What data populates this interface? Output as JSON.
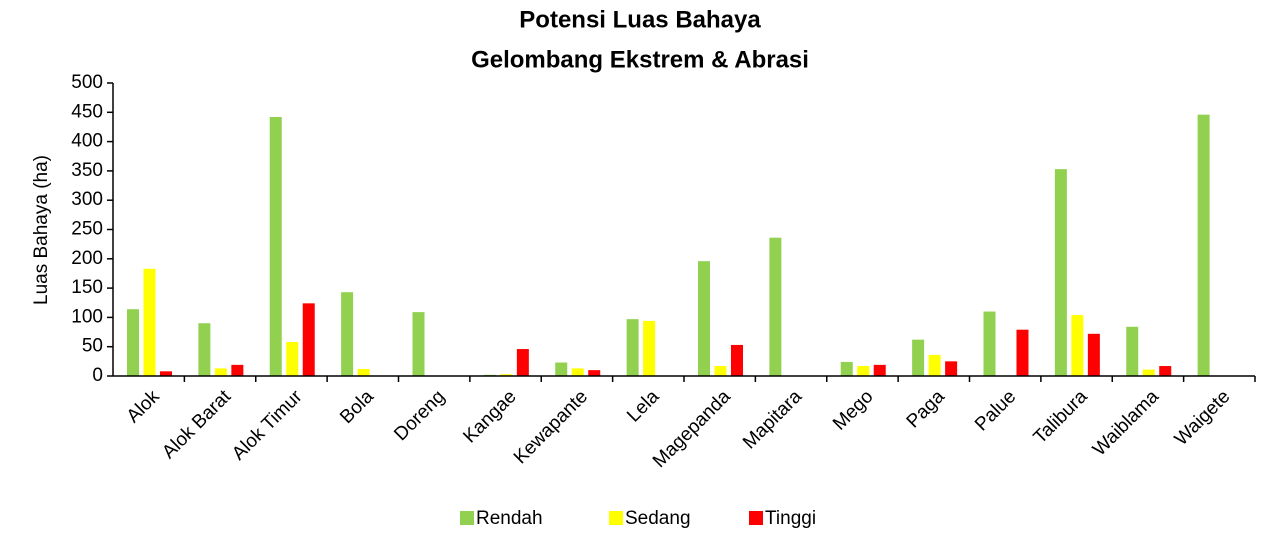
{
  "chart_data": {
    "type": "bar",
    "title": "Potensi Luas Bahaya",
    "subtitle": "Gelombang Ekstrem & Abrasi",
    "y_label": "Luas Bahaya (ha)",
    "categories": [
      "Alok",
      "Alok Barat",
      "Alok Timur",
      "Bola",
      "Doreng",
      "Kangae",
      "Kewapante",
      "Lela",
      "Magepanda",
      "Mapitara",
      "Mego",
      "Paga",
      "Palue",
      "Talibura",
      "Waiblama",
      "Waigete"
    ],
    "series": [
      {
        "name": "Rendah",
        "color": "#92d050",
        "values": [
          114,
          90,
          442,
          143,
          109,
          2,
          23,
          97,
          196,
          236,
          24,
          62,
          110,
          353,
          84,
          446
        ]
      },
      {
        "name": "Sedang",
        "color": "#ffff00",
        "values": [
          183,
          13,
          58,
          12,
          0,
          3,
          13,
          94,
          17,
          0,
          17,
          36,
          0,
          104,
          11,
          0
        ]
      },
      {
        "name": "Tinggi",
        "color": "#ff0000",
        "values": [
          8,
          19,
          124,
          0,
          0,
          46,
          10,
          0,
          53,
          0,
          19,
          25,
          79,
          72,
          17,
          0
        ]
      }
    ],
    "ylim": [
      0,
      500
    ],
    "yticks": [
      0,
      50,
      100,
      150,
      200,
      250,
      300,
      350,
      400,
      450,
      500
    ],
    "grid": false,
    "legend": "bottom"
  }
}
